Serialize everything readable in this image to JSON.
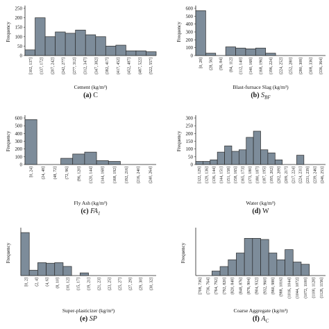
{
  "chart_data": [
    {
      "type": "bar",
      "panel": "(a)",
      "caption_plain": "C",
      "caption_sub": "",
      "ylabel": "Frequency",
      "xlabel": "Cement (kg/m³)",
      "ylim": [
        0,
        250
      ],
      "yticks": [
        0,
        50,
        100,
        150,
        200,
        250
      ],
      "categories": [
        "[102, 137]",
        "(137, 172]",
        "(172, 207]",
        "(207, 242]",
        "(242, 277]",
        "(277, 312]",
        "(312, 347]",
        "(347, 382]",
        "(382, 417]",
        "(417, 452]",
        "(452, 487]",
        "(487, 522]",
        "(522, 557]"
      ],
      "labels_shown": [
        "[102, 137]",
        "(137, 172]",
        "(207, 242]",
        "(242, 277]",
        "(277, 312]",
        "(312, 347]",
        "(347, 382]",
        "(382, 417]",
        "(417, 452]",
        "(452, 487]",
        "(487, 522]",
        "(522, 557]"
      ],
      "values": [
        30,
        200,
        100,
        125,
        118,
        135,
        110,
        100,
        50,
        55,
        25,
        25,
        20
      ]
    },
    {
      "type": "bar",
      "panel": "(b)",
      "caption_plain": "",
      "caption_main": "S",
      "caption_sub": "BF",
      "ylabel": "Frequency",
      "xlabel": "Blast-furnace Slag (kg/m³)",
      "ylim": [
        0,
        600
      ],
      "yticks": [
        0,
        100,
        200,
        300,
        400,
        500,
        600
      ],
      "categories": [
        "[0, 28]",
        "(28, 56]",
        "(56, 84]",
        "(84, 112]",
        "(112, 140]",
        "(140, 168]",
        "(168, 196]",
        "(196, 224]",
        "(224, 252]",
        "(252, 280]",
        "(280, 308]",
        "(308, 336]",
        "(336, 364]"
      ],
      "labels_shown": [
        "[0, 28]",
        "(28, 56]",
        "(56, 84]",
        "(84, 112]",
        "(112, 140]",
        "(140, 168]",
        "(168, 196]",
        "(196, 224]",
        "(224, 252]",
        "(252, 280]",
        "(280, 308]",
        "(308, 336]",
        "(336, 364]"
      ],
      "values": [
        570,
        30,
        0,
        110,
        95,
        85,
        95,
        30,
        0,
        0,
        0,
        0,
        0
      ]
    },
    {
      "type": "bar",
      "panel": "(c)",
      "caption_plain": "",
      "caption_main": "FA",
      "caption_sub": "1",
      "ylabel": "Frequency",
      "xlabel": "Fly Ash (kg/m³)",
      "ylim": [
        0,
        600
      ],
      "yticks": [
        0,
        100,
        200,
        300,
        400,
        500,
        600
      ],
      "categories": [
        "[0, 24]",
        "(24, 48]",
        "(48, 72]",
        "(72, 96]",
        "(96, 120]",
        "(120, 144]",
        "(144, 168]",
        "(168, 192]",
        "(192, 216]",
        "(216, 240]",
        "(240, 264]"
      ],
      "labels_shown": [
        "[0, 24]",
        "(24, 48]",
        "(48, 72]",
        "(72, 96]",
        "(96, 120]",
        "(120, 144]",
        "(144, 168]",
        "(168, 192]",
        "(192, 216]",
        "(216, 240]",
        "(240, 264]"
      ],
      "values": [
        580,
        0,
        0,
        80,
        135,
        160,
        50,
        40,
        0,
        0,
        0
      ]
    },
    {
      "type": "bar",
      "panel": "(d)",
      "caption_plain": "W",
      "caption_sub": "",
      "ylabel": "Frequency",
      "xlabel": "Water (kg/m³)",
      "ylim": [
        0,
        300
      ],
      "yticks": [
        0,
        50,
        100,
        150,
        200,
        250,
        300
      ],
      "categories": [
        "[122, 129]",
        "(129, 136]",
        "(136, 144]",
        "(144, 151]",
        "(151, 158]",
        "(158, 165]",
        "(165, 173]",
        "(173, 180]",
        "(180, 187]",
        "(187, 195]",
        "(195, 202]",
        "(202, 209]",
        "(209, 217]",
        "(217, 224]",
        "(224, 231]",
        "(231, 239]",
        "(239, 246]",
        "(246, 253]"
      ],
      "labels_shown": [
        "[122, 129]",
        "(129, 136]",
        "(136, 144]",
        "(144, 151]",
        "(151, 158]",
        "(158, 165]",
        "(165, 173]",
        "(173, 180]",
        "(180, 187]",
        "(187, 195]",
        "(195, 202]",
        "(202, 209]",
        "(209, 217]",
        "(217, 224]",
        "(224, 231]",
        "(231, 239]",
        "(239, 246]",
        "(246, 253]"
      ],
      "values": [
        20,
        20,
        30,
        80,
        120,
        85,
        95,
        175,
        215,
        95,
        75,
        30,
        0,
        0,
        60,
        0,
        0,
        0
      ]
    },
    {
      "type": "bar",
      "panel": "(e)",
      "caption_plain": "",
      "caption_main": "SP",
      "caption_sub": "",
      "ylabel": "Frequency",
      "xlabel": "Super-plasticizer (kg/m³)",
      "ylim": [
        0,
        420
      ],
      "yticks": [],
      "categories": [
        "[0, 2]",
        "(2, 4]",
        "(4, 6]",
        "(6, 8]",
        "(8, 10]",
        "(10, 12]",
        "(12, 14]",
        "(14, 16]",
        "(16, 18]",
        "(18, 20]",
        "(20, 22]",
        "(22, 24]",
        "(24, 26]",
        "(26, 28]",
        "(28, 30]",
        "(30, 32]"
      ],
      "labels_shown": [
        "[0, 2]",
        "(2, 4]",
        "(4, 6]",
        "(8, 10]",
        "(10, 12]",
        "(15, 17]",
        "(19, 21]",
        "(21, 23]",
        "(23, 25]",
        "(25, 27]",
        "(27, 29]",
        "(29, 30]",
        "(30, 32]"
      ],
      "values": [
        400,
        50,
        120,
        115,
        120,
        85,
        0,
        25,
        0,
        0,
        0,
        0,
        0,
        0,
        0,
        0
      ]
    },
    {
      "type": "bar",
      "panel": "(f)",
      "caption_plain": "",
      "caption_main": "A",
      "caption_sub": "C",
      "ylabel": "Frequency",
      "xlabel": "Coarse Aggregate (kg/m³)",
      "ylim": [
        0,
        200
      ],
      "yticks": [],
      "categories": [
        "[708, 736]",
        "(736, 764]",
        "(764, 792]",
        "(792, 820]",
        "(820, 848]",
        "(848, 876]",
        "(876, 904]",
        "(904, 932]",
        "(932, 960]",
        "(960, 988]",
        "(988, 1016]",
        "(1016, 1044]",
        "(1044, 1072]",
        "(1072, 1100]",
        "(1100, 1128]",
        "(1128, 1156]"
      ],
      "labels_shown": [
        "[708, 736]",
        "(736, 764]",
        "(764, 792]",
        "(792, 820]",
        "(820, 848]",
        "(848, 876]",
        "(876, 904]",
        "(904, 932]",
        "(932, 960]",
        "(960, 988]",
        "(988, 1016]",
        "(1016, 1044]",
        "(1044, 1072]",
        "(1072, 1100]",
        "(1100, 1128]",
        "(1128, 1156]"
      ],
      "values": [
        0,
        0,
        20,
        40,
        70,
        100,
        165,
        165,
        160,
        100,
        70,
        115,
        60,
        50,
        0,
        0
      ]
    }
  ],
  "colors": {
    "bar_fill": "#7d8c9a",
    "bar_stroke": "#2a2a2a",
    "axis": "#222222"
  }
}
